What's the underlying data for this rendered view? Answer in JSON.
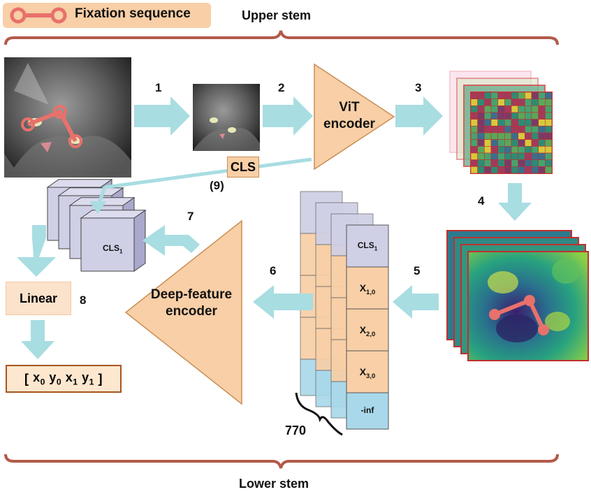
{
  "legend": {
    "label": "Fixation sequence",
    "color": "#e8716b"
  },
  "upper_stem": "Upper stem",
  "lower_stem": "Lower stem",
  "steps": [
    "1",
    "2",
    "3",
    "4",
    "5",
    "6",
    "7",
    "8",
    "(9)"
  ],
  "vit_encoder": [
    "ViT",
    "encoder"
  ],
  "deep_feature_encoder": [
    "Deep-feature",
    "encoder"
  ],
  "cls_token": "CLS",
  "cls1": {
    "base": "CLS",
    "sub": "1"
  },
  "linear": "Linear",
  "output": {
    "open": "[",
    "items": [
      {
        "base": "x",
        "sub": "0"
      },
      {
        "base": "y",
        "sub": "0"
      },
      {
        "base": "x",
        "sub": "1"
      },
      {
        "base": "y",
        "sub": "1"
      }
    ],
    "close": "]"
  },
  "stack_cells": [
    {
      "base": "CLS",
      "sub": "1"
    },
    {
      "base": "X",
      "sub": "1,0"
    },
    {
      "base": "X",
      "sub": "2,0"
    },
    {
      "base": "X",
      "sub": "3,0"
    },
    {
      "base": "-inf",
      "sub": ""
    }
  ],
  "sequence_length": "770",
  "colors": {
    "arrow": "#a8dde2",
    "orange_fill": "#f8cfa6",
    "orange_stroke": "#c98d54",
    "purple_fill": "#cfcfe6",
    "blue_fill": "#a9d8ea",
    "brace": "#b35a4a",
    "fixation": "#e8716b"
  },
  "icons": [
    "cat-image-icon",
    "feature-map-grid-icon",
    "heatmap-icon",
    "brace-icon"
  ]
}
